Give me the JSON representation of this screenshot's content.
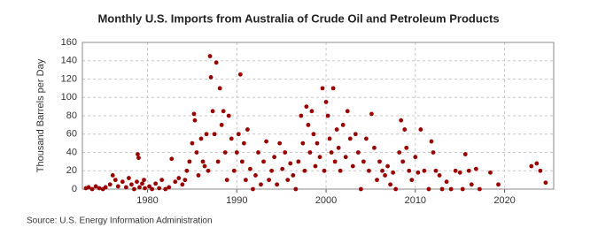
{
  "chart_data": {
    "type": "scatter",
    "title": "Monthly U.S. Imports from Australia of Crude Oil and Petroleum Products",
    "y_label": "Thousand Barrels per Day",
    "source": "Source: U.S. Energy Information Administration",
    "color": "#990000",
    "grid": true,
    "xlim": [
      1972.7,
      2025.5
    ],
    "xticks": [
      1980,
      1990,
      2000,
      2010,
      2020
    ],
    "ylim": [
      0,
      160
    ],
    "yticks": [
      0,
      20,
      40,
      60,
      80,
      100,
      120,
      140,
      160
    ],
    "x": [
      1973.1,
      1973.4,
      1973.8,
      1974.2,
      1974.6,
      1975.0,
      1975.3,
      1975.8,
      1976.1,
      1976.4,
      1976.7,
      1977.2,
      1977.6,
      1977.9,
      1978.2,
      1978.5,
      1978.8,
      1979.1,
      1979.4,
      1979.7,
      1978.9,
      1979.0,
      1979.6,
      1980.2,
      1980.5,
      1980.9,
      1981.3,
      1981.6,
      1982.0,
      1982.4,
      1982.7,
      1983.1,
      1983.5,
      1983.9,
      1984.2,
      1984.4,
      1984.7,
      1985.0,
      1985.2,
      1985.3,
      1985.5,
      1985.7,
      1986.0,
      1986.2,
      1986.4,
      1986.6,
      1986.8,
      1987.0,
      1987.1,
      1987.3,
      1987.5,
      1987.7,
      1987.9,
      1988.1,
      1988.3,
      1988.5,
      1988.7,
      1988.9,
      1989.1,
      1989.4,
      1989.7,
      1990.0,
      1990.2,
      1990.4,
      1990.6,
      1990.8,
      1991.0,
      1991.2,
      1991.5,
      1991.8,
      1992.1,
      1992.4,
      1992.7,
      1993.0,
      1993.3,
      1993.6,
      1993.9,
      1994.2,
      1994.5,
      1994.8,
      1995.1,
      1995.4,
      1995.7,
      1996.0,
      1996.3,
      1996.6,
      1996.9,
      1997.2,
      1997.4,
      1997.6,
      1997.8,
      1998.0,
      1998.2,
      1998.4,
      1998.6,
      1998.8,
      1999.0,
      1999.3,
      1999.6,
      1999.8,
      2000.0,
      2000.2,
      2000.4,
      2000.6,
      2000.8,
      2001.0,
      2001.2,
      2001.4,
      2001.6,
      2001.9,
      2002.2,
      2002.4,
      2002.7,
      2003.0,
      2003.3,
      2003.6,
      2003.9,
      2004.2,
      2004.5,
      2004.8,
      2005.1,
      2005.4,
      2005.7,
      2006.0,
      2006.3,
      2006.6,
      2006.9,
      2007.2,
      2007.5,
      2007.8,
      2008.2,
      2008.4,
      2008.6,
      2008.8,
      2009.0,
      2009.3,
      2009.6,
      2010.0,
      2010.3,
      2010.6,
      2011.0,
      2011.5,
      2011.8,
      2012.0,
      2012.3,
      2012.7,
      2013.0,
      2013.5,
      2014.0,
      2014.5,
      2015.0,
      2015.3,
      2015.6,
      2016.0,
      2016.3,
      2016.8,
      2017.2,
      2018.4,
      2019.3,
      2023.0,
      2023.6,
      2024.0,
      2024.6
    ],
    "values": [
      1,
      2,
      0,
      3,
      1,
      0,
      2,
      5,
      15,
      10,
      3,
      8,
      2,
      12,
      5,
      0,
      8,
      2,
      6,
      1,
      38,
      34,
      10,
      3,
      0,
      6,
      1,
      10,
      0,
      2,
      33,
      8,
      12,
      5,
      10,
      20,
      30,
      50,
      82,
      75,
      40,
      15,
      55,
      30,
      25,
      60,
      20,
      145,
      122,
      85,
      60,
      138,
      30,
      110,
      70,
      85,
      40,
      10,
      80,
      55,
      20,
      40,
      60,
      125,
      30,
      50,
      10,
      65,
      22,
      0,
      15,
      40,
      5,
      30,
      52,
      10,
      20,
      35,
      5,
      50,
      22,
      40,
      10,
      28,
      15,
      0,
      30,
      80,
      50,
      20,
      90,
      70,
      40,
      85,
      60,
      25,
      50,
      35,
      110,
      20,
      95,
      80,
      55,
      40,
      110,
      30,
      65,
      45,
      20,
      70,
      35,
      85,
      55,
      25,
      60,
      40,
      0,
      30,
      55,
      20,
      82,
      45,
      10,
      30,
      20,
      15,
      25,
      5,
      18,
      0,
      40,
      75,
      30,
      65,
      45,
      20,
      10,
      35,
      18,
      65,
      20,
      0,
      52,
      40,
      20,
      15,
      0,
      8,
      0,
      20,
      18,
      0,
      38,
      20,
      5,
      22,
      0,
      18,
      5,
      25,
      28,
      20,
      7
    ]
  }
}
